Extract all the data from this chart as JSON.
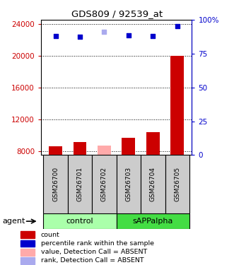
{
  "title": "GDS809 / 92539_at",
  "samples": [
    "GSM26700",
    "GSM26701",
    "GSM26702",
    "GSM26703",
    "GSM26704",
    "GSM26705"
  ],
  "bar_values": [
    8600,
    9100,
    8700,
    9700,
    10400,
    20000
  ],
  "bar_colors": [
    "#cc0000",
    "#cc0000",
    "#ffaaaa",
    "#cc0000",
    "#cc0000",
    "#cc0000"
  ],
  "dot_values": [
    22500,
    22400,
    23000,
    22600,
    22500,
    23700
  ],
  "dot_colors": [
    "#0000cc",
    "#0000cc",
    "#aaaaee",
    "#0000cc",
    "#0000cc",
    "#0000cc"
  ],
  "ylim_left": [
    7500,
    24500
  ],
  "ylim_right": [
    0,
    100
  ],
  "yticks_left": [
    8000,
    12000,
    16000,
    20000,
    24000
  ],
  "yticks_right": [
    0,
    25,
    50,
    75,
    100
  ],
  "ytick_labels_right": [
    "0",
    "25",
    "50",
    "75",
    "100%"
  ],
  "left_axis_color": "#cc0000",
  "right_axis_color": "#0000cc",
  "group_colors_control": "#aaffaa",
  "group_colors_sapp": "#44dd44",
  "legend_items": [
    {
      "label": "count",
      "color": "#cc0000"
    },
    {
      "label": "percentile rank within the sample",
      "color": "#0000cc"
    },
    {
      "label": "value, Detection Call = ABSENT",
      "color": "#ffaaaa"
    },
    {
      "label": "rank, Detection Call = ABSENT",
      "color": "#aaaaee"
    }
  ],
  "background_color": "#ffffff",
  "bar_width": 0.55
}
